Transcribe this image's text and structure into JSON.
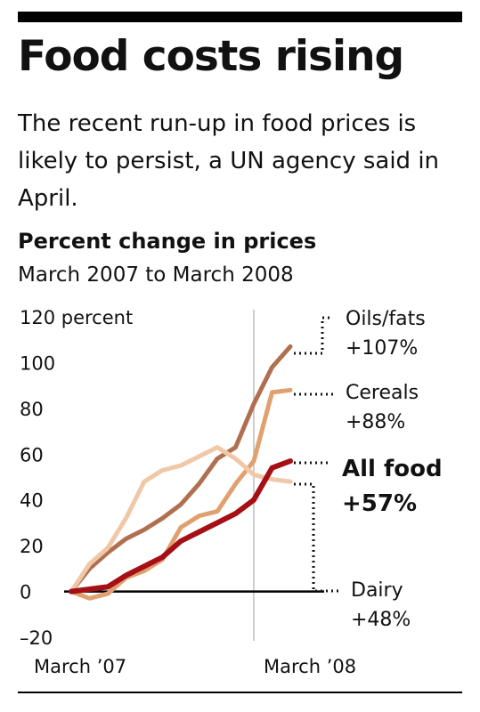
{
  "title": "Food costs rising",
  "subtitle": "The recent run-up in food prices is likely to persist, a UN agency said in April.",
  "chart_data": {
    "type": "line",
    "title": "Percent change in prices",
    "subtitle": "March 2007 to March 2008",
    "y_unit_label": "120 percent",
    "ylim": [
      -20,
      120
    ],
    "yticks": [
      {
        "value": 120,
        "label": "120 percent"
      },
      {
        "value": 100,
        "label": "100"
      },
      {
        "value": 80,
        "label": "80"
      },
      {
        "value": 60,
        "label": "60"
      },
      {
        "value": 40,
        "label": "40"
      },
      {
        "value": 20,
        "label": "20"
      },
      {
        "value": 0,
        "label": "0"
      },
      {
        "value": -20,
        "label": "–20"
      }
    ],
    "x": [
      "Mar 2007",
      "Apr 2007",
      "May 2007",
      "Jun 2007",
      "Jul 2007",
      "Aug 2007",
      "Sep 2007",
      "Oct 2007",
      "Nov 2007",
      "Dec 2007",
      "Jan 2008",
      "Feb 2008",
      "Mar 2008"
    ],
    "xtick_labels": [
      {
        "index": 0,
        "label": "March ’07"
      },
      {
        "index": 12,
        "label": "March ’08"
      }
    ],
    "series": [
      {
        "name": "Oils/fats",
        "change_label": "+107%",
        "color": "#b07050",
        "emphasis": false,
        "values": [
          0,
          10,
          17,
          23,
          27,
          32,
          38,
          47,
          58,
          63,
          82,
          98,
          107
        ]
      },
      {
        "name": "Cereals",
        "change_label": "+88%",
        "color": "#e0a070",
        "emphasis": false,
        "values": [
          0,
          -3,
          -1,
          6,
          9,
          14,
          28,
          33,
          35,
          47,
          57,
          87,
          88
        ]
      },
      {
        "name": "All food",
        "change_label": "+57%",
        "color": "#a50f15",
        "emphasis": true,
        "values": [
          0,
          1,
          2,
          7,
          11,
          15,
          22,
          26,
          30,
          34,
          40,
          54,
          57
        ]
      },
      {
        "name": "Dairy",
        "change_label": "+48%",
        "color": "#f0c8a8",
        "emphasis": false,
        "values": [
          0,
          12,
          19,
          32,
          48,
          53,
          55,
          59,
          63,
          58,
          51,
          49,
          48
        ]
      }
    ]
  }
}
